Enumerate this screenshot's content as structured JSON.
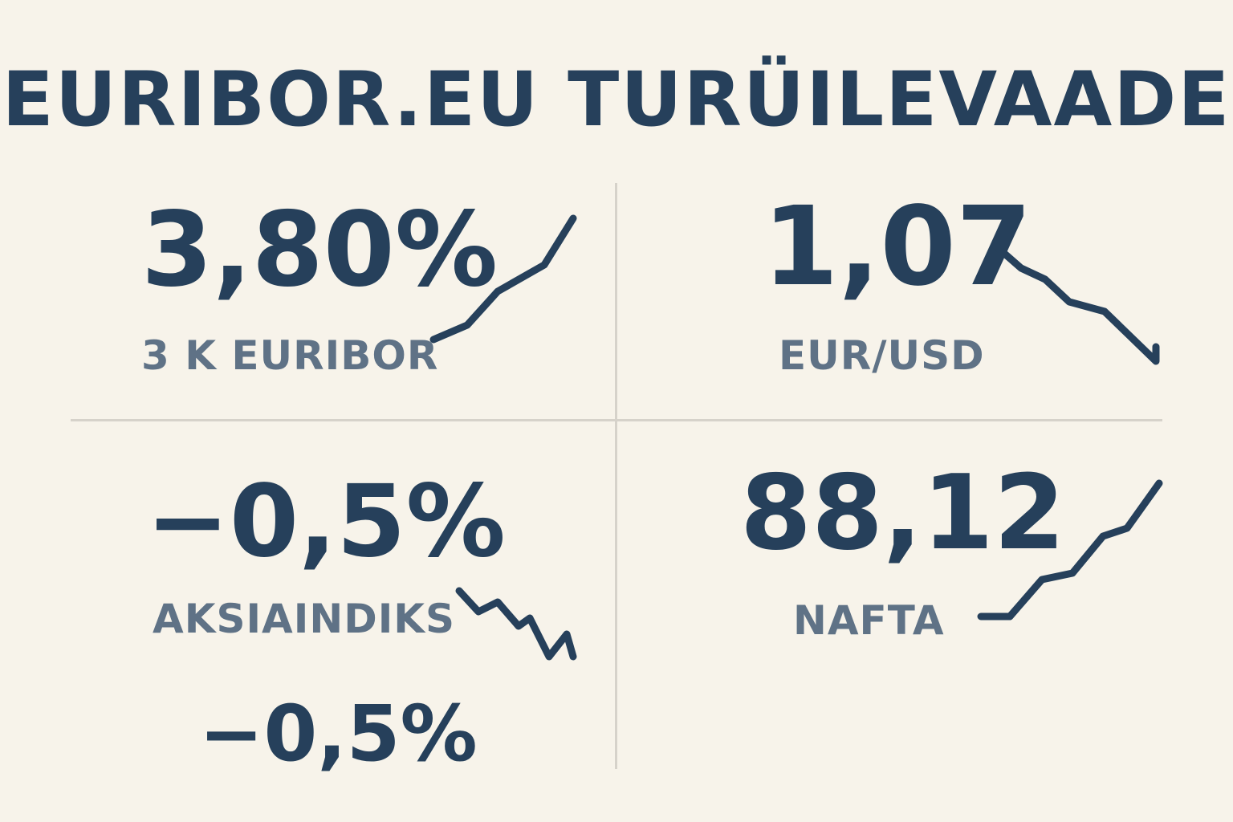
{
  "title": "EURIBOR.EU TURÜILEVAADE",
  "tiles": [
    {
      "id": "euribor",
      "value": "3,80%",
      "label": "3 K EURIBOR",
      "trend": "up"
    },
    {
      "id": "eurusd",
      "value": "1,07",
      "label": "EUR/USD",
      "trend": "down"
    },
    {
      "id": "stock",
      "value": "−0,5%",
      "label": "AKSIAINDIKS",
      "trend": "down"
    },
    {
      "id": "oil",
      "value": "88,12",
      "label": "NAFTA",
      "trend": "up"
    }
  ],
  "extra_value": "−0,5%",
  "colors": {
    "background": "#f7f3ea",
    "primary": "#26405b",
    "label": "#5f7286",
    "divider": "#d6d2ca"
  }
}
